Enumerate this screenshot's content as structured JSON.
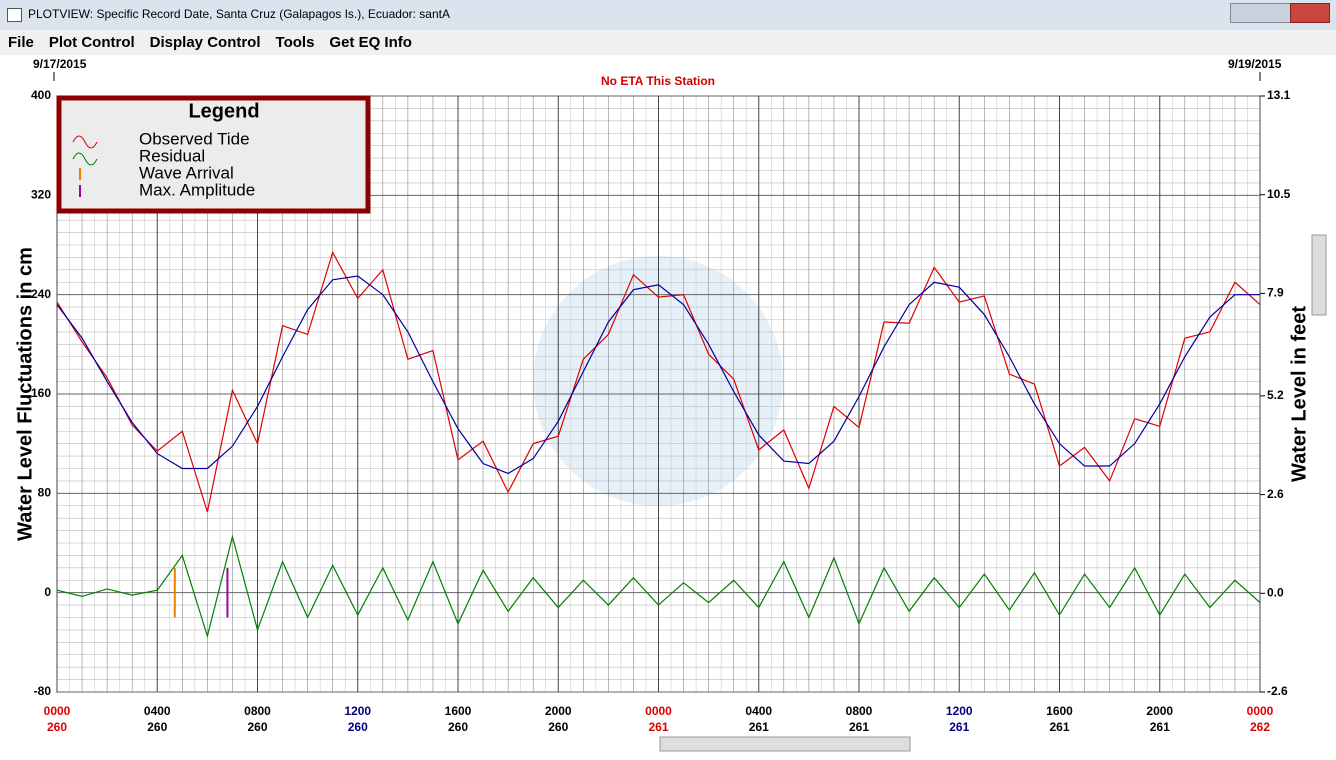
{
  "window": {
    "title": "PLOTVIEW: Specific Record Date, Santa Cruz (Galapagos Is.), Ecuador: santA"
  },
  "menu": [
    "File",
    "Plot Control",
    "Display Control",
    "Tools",
    "Get EQ Info"
  ],
  "chart_data": {
    "type": "line",
    "start_date": "9/17/2015",
    "end_date": "9/19/2015",
    "subtitle": "No ETA This Station",
    "ylabel": "Water Level Fluctuations in cm",
    "y2label": "Water Level in feet",
    "legend_title": "Legend",
    "legend": [
      "Observed Tide",
      "Residual",
      "Wave Arrival",
      "Max. Amplitude"
    ],
    "legend_colors": [
      "#e00000",
      "#008000",
      "#f08000",
      "#a000a0"
    ],
    "x": [
      0,
      1,
      2,
      3,
      4,
      5,
      6,
      7,
      8,
      9,
      10,
      11,
      12,
      13,
      14,
      15,
      16,
      17,
      18,
      19,
      20,
      21,
      22,
      23,
      24,
      25,
      26,
      27,
      28,
      29,
      30,
      31,
      32,
      33,
      34,
      35,
      36,
      37,
      38,
      39,
      40,
      41,
      42,
      43,
      44,
      45,
      46,
      47,
      48
    ],
    "xlim": [
      0,
      48
    ],
    "xticks": [
      {
        "value": 0,
        "label": "0000"
      },
      {
        "value": 4,
        "label": "0400"
      },
      {
        "value": 8,
        "label": "0800"
      },
      {
        "value": 12,
        "label": "1200"
      },
      {
        "value": 16,
        "label": "1600"
      },
      {
        "value": 20,
        "label": "2000"
      },
      {
        "value": 24,
        "label": "0000"
      },
      {
        "value": 28,
        "label": "0400"
      },
      {
        "value": 32,
        "label": "0800"
      },
      {
        "value": 36,
        "label": "1200"
      },
      {
        "value": 40,
        "label": "1600"
      },
      {
        "value": 44,
        "label": "2000"
      },
      {
        "value": 48,
        "label": "0000"
      }
    ],
    "xtick_days": [
      "260",
      "260",
      "260",
      "260",
      "260",
      "260",
      "261",
      "261",
      "261",
      "261",
      "261",
      "261",
      "262"
    ],
    "xtick_colors": [
      "#e00000",
      "#000000",
      "#000000",
      "#000080",
      "#000000",
      "#000000",
      "#e00000",
      "#000000",
      "#000000",
      "#000080",
      "#000000",
      "#000000",
      "#e00000"
    ],
    "ylim": [
      -80,
      400
    ],
    "yticks": [
      -80,
      0,
      80,
      160,
      240,
      320,
      400
    ],
    "y2lim": [
      -2.6,
      13.1
    ],
    "y2ticks": [
      -2.6,
      {
        "value": 0,
        "label": "0.0"
      },
      2.6,
      5.2,
      7.9,
      10.5,
      13.1
    ],
    "grid": true,
    "series": [
      {
        "name": "Observed Tide",
        "color": "#e00000",
        "values": [
          234,
          202,
          173,
          135,
          114,
          130,
          65,
          163,
          120,
          215,
          208,
          274,
          237,
          260,
          188,
          195,
          107,
          122,
          81,
          120,
          126,
          188,
          208,
          256,
          238,
          240,
          192,
          172,
          115,
          131,
          84,
          150,
          133,
          218,
          217,
          262,
          234,
          239,
          176,
          168,
          102,
          117,
          90,
          140,
          134,
          205,
          210,
          250,
          232
        ]
      },
      {
        "color": "#0000a0",
        "values": [
          232,
          205,
          170,
          137,
          112,
          100,
          100,
          118,
          150,
          190,
          228,
          252,
          255,
          240,
          210,
          170,
          132,
          104,
          96,
          108,
          138,
          178,
          218,
          244,
          248,
          232,
          200,
          162,
          127,
          106,
          104,
          122,
          158,
          198,
          232,
          250,
          246,
          224,
          190,
          152,
          120,
          102,
          102,
          120,
          152,
          190,
          222,
          240,
          240
        ]
      },
      {
        "name": "Residual",
        "color": "#008000",
        "values": [
          2,
          -3,
          3,
          -2,
          2,
          30,
          -35,
          45,
          -30,
          25,
          -20,
          22,
          -18,
          20,
          -22,
          25,
          -25,
          18,
          -15,
          12,
          -12,
          10,
          -10,
          12,
          -10,
          8,
          -8,
          10,
          -12,
          25,
          -20,
          28,
          -25,
          20,
          -15,
          12,
          -12,
          15,
          -14,
          16,
          -18,
          15,
          -12,
          20,
          -18,
          15,
          -12,
          10,
          -8
        ]
      }
    ],
    "wave_arrival_x": 4.7,
    "max_amplitude_x": 6.8
  }
}
